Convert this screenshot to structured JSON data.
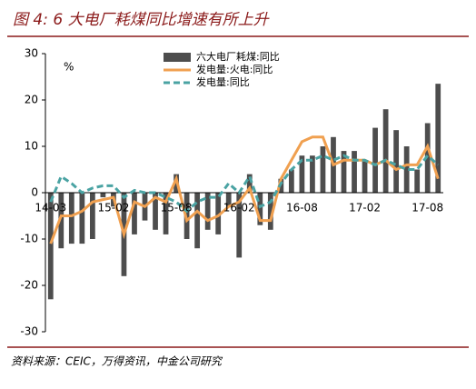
{
  "chart_data": {
    "type": "bar",
    "title": "图 4: 6 大电厂耗煤同比增速有所上升",
    "source": "资料来源：CEIC，万得资讯，中金公司研究",
    "y_unit": "%",
    "categories": [
      "14-03",
      null,
      null,
      null,
      null,
      null,
      "15-02",
      null,
      null,
      null,
      null,
      null,
      "15-08",
      null,
      null,
      null,
      null,
      null,
      "16-02",
      null,
      null,
      null,
      null,
      null,
      "16-08",
      null,
      null,
      null,
      null,
      null,
      "17-02",
      null,
      null,
      null,
      null,
      null,
      "17-08",
      null
    ],
    "series": [
      {
        "name": "六大电厂耗煤:同比",
        "type": "bar",
        "color": "#4d4d4d",
        "values": [
          -23,
          -12,
          -11,
          -11,
          -10,
          -1,
          -3,
          -18,
          -9,
          -6,
          -8,
          -9,
          4,
          -10,
          -12,
          -8,
          -9,
          -3,
          -14,
          4,
          -7,
          -8,
          3,
          5,
          8,
          8,
          10,
          12,
          9,
          9,
          7,
          14,
          18,
          13.5,
          10,
          5,
          15,
          23.5
        ]
      },
      {
        "name": "发电量:火电:同比",
        "type": "line",
        "color": "#f0a050",
        "values": [
          -11,
          -5,
          -5,
          -4,
          -2,
          -1.5,
          -1,
          -9,
          -2,
          -3,
          -1,
          -2,
          3,
          -6,
          -4,
          -6,
          -5,
          -3,
          -2,
          1,
          -6,
          -6,
          3,
          7,
          11,
          12,
          12,
          6,
          7,
          7,
          7,
          6,
          7,
          5,
          6,
          6,
          10,
          3
        ]
      },
      {
        "name": "发电量:同比",
        "type": "line",
        "dashed": true,
        "color": "#4aa3a3",
        "values": [
          -2,
          3.5,
          2,
          0,
          1,
          1.5,
          1.5,
          -1,
          0.5,
          0,
          0,
          -1,
          -2,
          -4,
          -2,
          -1,
          -1,
          2,
          0,
          3.5,
          -3,
          -2,
          2,
          5,
          7,
          7,
          8,
          7,
          8,
          7,
          7,
          6,
          7,
          6,
          5,
          5,
          8,
          6
        ]
      }
    ],
    "ylim": [
      -30,
      30
    ],
    "yticks": [
      -30,
      -20,
      -10,
      0,
      10,
      20,
      30
    ],
    "legend": "top"
  }
}
